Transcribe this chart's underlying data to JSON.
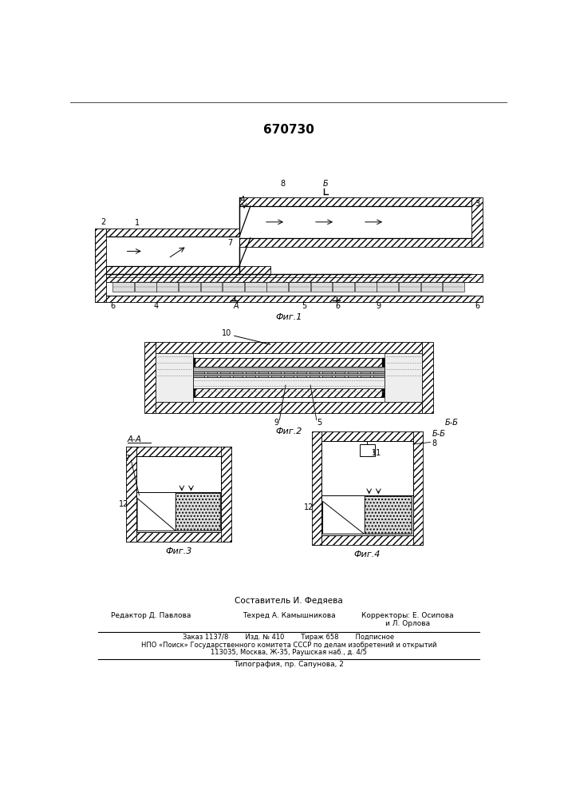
{
  "patent_number": "670730",
  "background_color": "#ffffff",
  "line_color": "#000000",
  "fig1_label": "Фиг.1",
  "fig2_label": "Фиг.2",
  "fig3_label": "Фиг.3",
  "fig4_label": "Фиг.4",
  "section_aa": "А-А",
  "section_bb": "Б-Б",
  "footer_line1": "Составитель И. Федяева",
  "footer_col1": "Редактор Д. Павлова",
  "footer_col2": "Техред А. Камышникова",
  "footer_col3": "Корректоры: Е. Осипова",
  "footer_col3b": "и Л. Орлова",
  "footer_line4": "Заказ 1137/8        Изд. № 410        Тираж 658        Подписное",
  "footer_line5": "НПО «Поиск» Государственного комитета СССР по делам изобретений и открытий",
  "footer_line6": "113035, Москва, Ж-35, Раушская наб., д. 4/5",
  "footer_line7": "Типография, пр. Сапунова, 2"
}
